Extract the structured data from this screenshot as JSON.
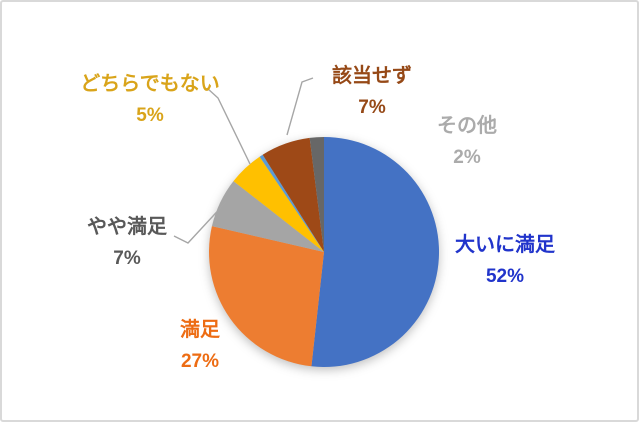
{
  "frame": {
    "background": "#FFFFFF",
    "border_color": "#D9D9D9"
  },
  "chart_data": {
    "type": "pie",
    "title": "",
    "legend": "none",
    "labels_style": "category name and percentage shown outside slices",
    "start_angle_deg": 0,
    "direction": "clockwise",
    "leader_line_color": "#A6A6A6",
    "slices": [
      {
        "id": "very-satisfied",
        "label": "大いに満足",
        "value": 52,
        "pct_text": "52%",
        "color": "#4472C4",
        "label_color": "#2134CB",
        "leader_line": false
      },
      {
        "id": "satisfied",
        "label": "満足",
        "value": 27,
        "pct_text": "27%",
        "color": "#ED7D31",
        "label_color": "#ED6C13",
        "leader_line": false
      },
      {
        "id": "somewhat-satisfied",
        "label": "やや満足",
        "value": 7,
        "pct_text": "7%",
        "color": "#A5A5A5",
        "label_color": "#595959",
        "leader_line": true
      },
      {
        "id": "neutral",
        "label": "どちらでもない",
        "value": 5,
        "pct_text": "5%",
        "color": "#FFC000",
        "label_color": "#D9A41A",
        "leader_line": true
      },
      {
        "id": "unlabeled-sliver",
        "label": "",
        "value": 0.5,
        "pct_text": "",
        "color": "#5B9BD5",
        "label_color": "",
        "leader_line": false
      },
      {
        "id": "not-applicable",
        "label": "該当せず",
        "value": 7,
        "pct_text": "7%",
        "color": "#9E4917",
        "label_color": "#964917",
        "leader_line": true
      },
      {
        "id": "other",
        "label": "その他",
        "value": 2,
        "pct_text": "2%",
        "color": "#676767",
        "label_color": "#ABABAB",
        "leader_line": false
      }
    ]
  }
}
